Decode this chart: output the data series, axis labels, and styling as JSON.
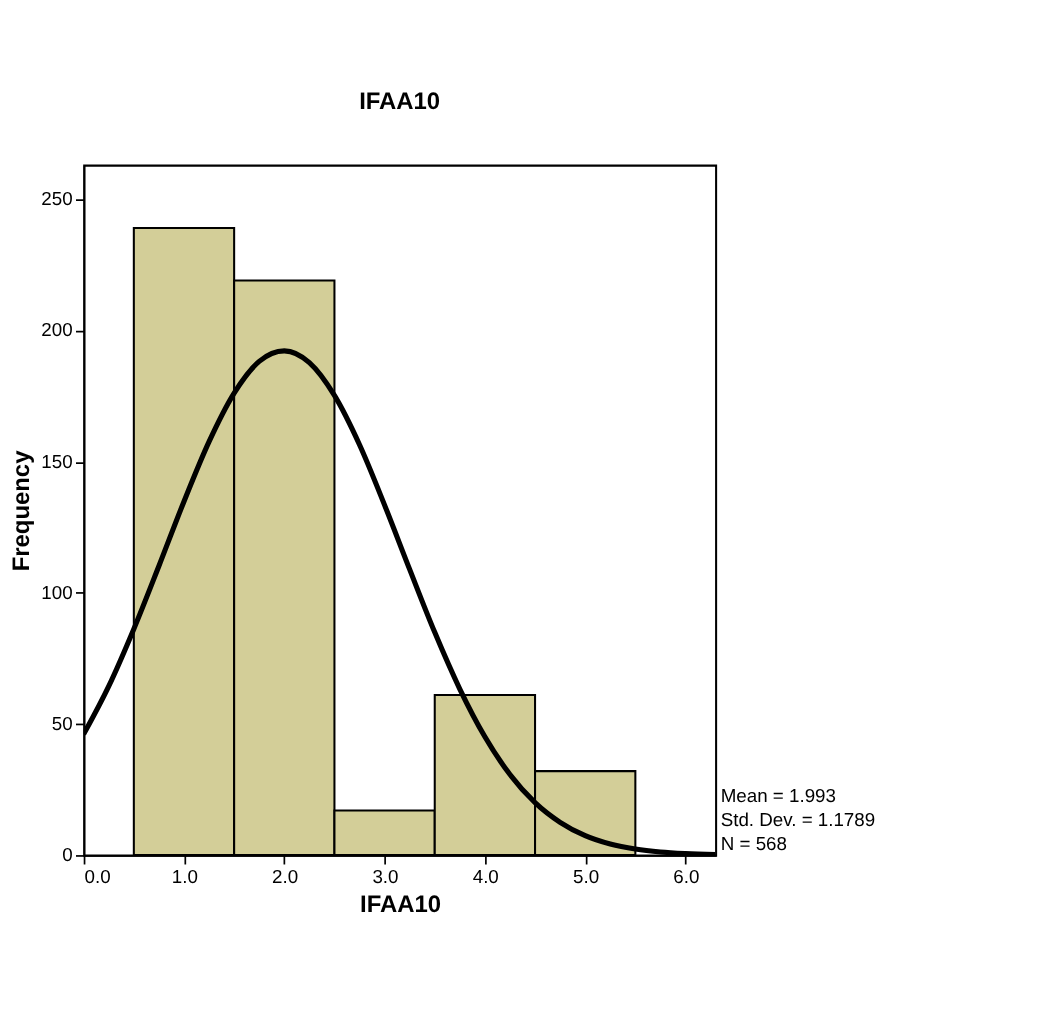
{
  "chart_data": {
    "type": "histogram",
    "title": "IFAA10",
    "xlabel": "IFAA10",
    "ylabel": "Frequency",
    "bins": [
      0.5,
      1.5,
      2.5,
      3.5,
      4.5,
      5.5
    ],
    "values": [
      239,
      219,
      17,
      61,
      32
    ],
    "color": "#d3ce98",
    "series": [
      {
        "type": "line",
        "color": "#000000",
        "x": [
          0,
          0.25,
          0.5,
          0.75,
          1.0,
          1.25,
          1.5,
          1.75,
          2.0,
          2.25,
          2.5,
          2.75,
          3.0,
          3.25,
          3.5,
          3.75,
          4.0,
          4.25,
          4.5,
          4.75,
          5.0,
          5.25,
          5.5,
          5.75,
          6.0,
          6.3
        ],
        "values": [
          46.1,
          64.4,
          86.2,
          110.2,
          134.8,
          157.6,
          176.1,
          188.2,
          192.2,
          187.7,
          175.2,
          156.4,
          133.4,
          108.9,
          84.9,
          63.3,
          45.1,
          30.7,
          20.0,
          12.5,
          7.4,
          4.2,
          2.3,
          1.2,
          0.6,
          0.2
        ]
      }
    ],
    "xlim": [
      0,
      6.3
    ],
    "ylim": [
      0,
      263
    ],
    "xticks": [
      {
        "value": 0,
        "label": "0.0"
      },
      {
        "value": 1,
        "label": "1.0"
      },
      {
        "value": 2,
        "label": "2.0"
      },
      {
        "value": 3,
        "label": "3.0"
      },
      {
        "value": 4,
        "label": "4.0"
      },
      {
        "value": 5,
        "label": "5.0"
      },
      {
        "value": 6,
        "label": "6.0"
      }
    ],
    "yticks": [
      0,
      50,
      100,
      150,
      200,
      250
    ],
    "grid": false,
    "annotations": [
      "Mean = 1.993",
      "Std. Dev. = 1.1789",
      "N = 568"
    ]
  }
}
